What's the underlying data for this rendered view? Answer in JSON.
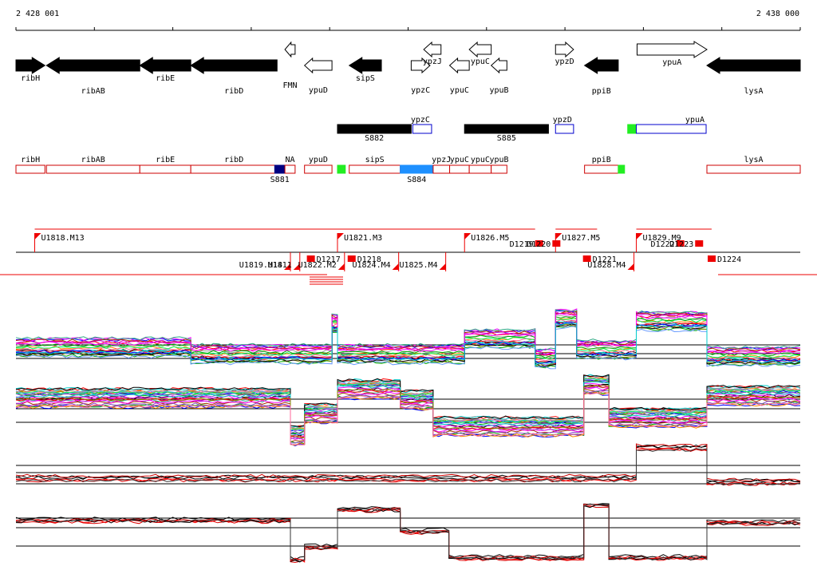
{
  "coords": {
    "start": "2 428 001",
    "end": "2 438 000"
  },
  "colors": {
    "gene_fill": "#000000",
    "feature_outline_red": "#cc0000",
    "feature_outline_blue": "#0000cc",
    "segment_red": "#ee0000",
    "green": "#22ee22",
    "navy": "#000080",
    "sky": "#1e90ff"
  },
  "genes": [
    {
      "name": "ribH",
      "strand": "+",
      "start": 2428001,
      "end": 2428370,
      "filled": true
    },
    {
      "name": "ribAB",
      "strand": "-",
      "start": 2428390,
      "end": 2429580,
      "filled": true
    },
    {
      "name": "ribE",
      "strand": "-",
      "start": 2429580,
      "end": 2430230,
      "filled": true
    },
    {
      "name": "ribD",
      "strand": "-",
      "start": 2430230,
      "end": 2431330,
      "filled": true
    },
    {
      "name": "FMN",
      "strand": "-",
      "start": 2431430,
      "end": 2431560,
      "filled": false
    },
    {
      "name": "ypuD",
      "strand": "-",
      "start": 2431680,
      "end": 2432030,
      "filled": false
    },
    {
      "name": "sipS",
      "strand": "-",
      "start": 2432250,
      "end": 2432660,
      "filled": true
    },
    {
      "name": "ypzC",
      "strand": "+",
      "start": 2433040,
      "end": 2433280,
      "filled": false
    },
    {
      "name": "ypzJ",
      "strand": "-",
      "start": 2433200,
      "end": 2433420,
      "filled": false
    },
    {
      "name": "ypuC",
      "strand": "-",
      "start": 2433530,
      "end": 2433780,
      "filled": false
    },
    {
      "name": "ypuC",
      "strand": "-",
      "start": 2433780,
      "end": 2434060,
      "filled": false
    },
    {
      "name": "ypuB",
      "strand": "-",
      "start": 2434060,
      "end": 2434260,
      "filled": false
    },
    {
      "name": "ypzD",
      "strand": "+",
      "start": 2434880,
      "end": 2435110,
      "filled": false
    },
    {
      "name": "ppiB",
      "strand": "-",
      "start": 2435250,
      "end": 2435680,
      "filled": true
    },
    {
      "name": "ypuA",
      "strand": "+",
      "start": 2435920,
      "end": 2436810,
      "filled": false
    },
    {
      "name": "lysA",
      "strand": "-",
      "start": 2436810,
      "end": 2438000,
      "filled": true
    }
  ],
  "blocks": [
    {
      "label": "S882",
      "kind": "black",
      "start": 2432100,
      "end": 2433040
    },
    {
      "label": "ypzC",
      "kind": "blue",
      "start": 2433060,
      "end": 2433300
    },
    {
      "label": "S885",
      "kind": "black",
      "start": 2433720,
      "end": 2434790
    },
    {
      "label": "ypzD",
      "kind": "blue",
      "start": 2434880,
      "end": 2435110
    },
    {
      "label": "",
      "kind": "green",
      "start": 2435800,
      "end": 2435910
    },
    {
      "label": "ypuA",
      "kind": "blue",
      "start": 2435910,
      "end": 2436800
    }
  ],
  "segments": [
    {
      "label": "ribH",
      "start": 2428001,
      "end": 2428370,
      "kind": "red"
    },
    {
      "label": "ribAB",
      "start": 2428390,
      "end": 2429580,
      "kind": "red"
    },
    {
      "label": "ribE",
      "start": 2429580,
      "end": 2430230,
      "kind": "red"
    },
    {
      "label": "ribD",
      "start": 2430230,
      "end": 2431330,
      "kind": "red"
    },
    {
      "label": "S881",
      "start": 2431300,
      "end": 2431430,
      "kind": "navy"
    },
    {
      "label": "NA",
      "start": 2431430,
      "end": 2431560,
      "kind": "red"
    },
    {
      "label": "ypuD",
      "start": 2431680,
      "end": 2432030,
      "kind": "red"
    },
    {
      "label": "",
      "start": 2432100,
      "end": 2432200,
      "kind": "green"
    },
    {
      "label": "sipS",
      "start": 2432250,
      "end": 2432900,
      "kind": "red"
    },
    {
      "label": "S884",
      "start": 2432900,
      "end": 2433320,
      "kind": "sky"
    },
    {
      "label": "ypzJ",
      "start": 2433320,
      "end": 2433530,
      "kind": "red"
    },
    {
      "label": "ypuC",
      "start": 2433530,
      "end": 2433780,
      "kind": "red"
    },
    {
      "label": "ypuC",
      "start": 2433780,
      "end": 2434060,
      "kind": "red"
    },
    {
      "label": "ypuB",
      "start": 2434060,
      "end": 2434260,
      "kind": "red"
    },
    {
      "label": "ppiB",
      "start": 2435250,
      "end": 2435680,
      "kind": "red"
    },
    {
      "label": "",
      "start": 2435680,
      "end": 2435760,
      "kind": "green"
    },
    {
      "label": "lysA",
      "start": 2436810,
      "end": 2438000,
      "kind": "red"
    }
  ],
  "transcripts_top": [
    {
      "label": "U1818.M13",
      "start": 2428240,
      "end": 2433900
    },
    {
      "label": "U1821.M3",
      "start": 2432100,
      "end": 2433040
    },
    {
      "label": "U1826.M5",
      "start": 2433720,
      "end": 2434620
    },
    {
      "label": "U1827.M5",
      "start": 2434880,
      "end": 2435410
    },
    {
      "label": "U1829.M9",
      "start": 2435910,
      "end": 2436870
    }
  ],
  "transcripts_bottom": [
    {
      "label": "U1819.M14",
      "start": 2428001,
      "end": 2431500
    },
    {
      "label": "U1811",
      "start": 2431500,
      "end": 2431620
    },
    {
      "label": "U1822.M2",
      "start": 2431620,
      "end": 2432190
    },
    {
      "label": "U1824.M4",
      "start": 2432250,
      "end": 2432880
    },
    {
      "label": "U1825.M4",
      "start": 2432880,
      "end": 2433480
    },
    {
      "label": "U1828.M4",
      "start": 2435230,
      "end": 2435880
    }
  ],
  "red_marks": [
    {
      "label": "D1217",
      "pos": 2431710,
      "row": "bottom"
    },
    {
      "label": "D1218",
      "pos": 2432230,
      "row": "bottom"
    },
    {
      "label": "D1219",
      "pos": 2434620,
      "row": "top"
    },
    {
      "label": "D1220",
      "pos": 2434840,
      "row": "top"
    },
    {
      "label": "D1221",
      "pos": 2435230,
      "row": "bottom"
    },
    {
      "label": "D1222",
      "pos": 2436420,
      "row": "top"
    },
    {
      "label": "D1223",
      "pos": 2436660,
      "row": "top"
    },
    {
      "label": "D1224",
      "pos": 2436820,
      "row": "bottom"
    }
  ],
  "tracks": [
    {
      "name": "track-1",
      "levels": [
        {
          "start": 2428001,
          "end": 2430230,
          "v": 0.35
        },
        {
          "start": 2430230,
          "end": 2432030,
          "v": 0.2
        },
        {
          "start": 2432030,
          "end": 2432100,
          "v": 0.9
        },
        {
          "start": 2432100,
          "end": 2433720,
          "v": 0.2
        },
        {
          "start": 2433720,
          "end": 2434620,
          "v": 0.55
        },
        {
          "start": 2434620,
          "end": 2434880,
          "v": 0.1
        },
        {
          "start": 2434880,
          "end": 2435150,
          "v": 1.0
        },
        {
          "start": 2435150,
          "end": 2435910,
          "v": 0.3
        },
        {
          "start": 2435910,
          "end": 2436810,
          "v": 0.95
        },
        {
          "start": 2436810,
          "end": 2438000,
          "v": 0.15
        }
      ]
    },
    {
      "name": "track-2",
      "levels": [
        {
          "start": 2428001,
          "end": 2431500,
          "v": 0.55
        },
        {
          "start": 2431500,
          "end": 2431680,
          "v": -0.3
        },
        {
          "start": 2431680,
          "end": 2432100,
          "v": 0.2
        },
        {
          "start": 2432100,
          "end": 2432900,
          "v": 0.75
        },
        {
          "start": 2432900,
          "end": 2433320,
          "v": 0.5
        },
        {
          "start": 2433320,
          "end": 2435240,
          "v": -0.1
        },
        {
          "start": 2435240,
          "end": 2435560,
          "v": 0.85
        },
        {
          "start": 2435560,
          "end": 2436810,
          "v": 0.1
        },
        {
          "start": 2436810,
          "end": 2438000,
          "v": 0.6
        }
      ]
    },
    {
      "name": "track-3",
      "levels": [
        {
          "start": 2428001,
          "end": 2435910,
          "v": 0.15
        },
        {
          "start": 2435910,
          "end": 2436810,
          "v": 1.0
        },
        {
          "start": 2436810,
          "end": 2438000,
          "v": 0.05
        }
      ]
    },
    {
      "name": "track-4",
      "levels": [
        {
          "start": 2428001,
          "end": 2431500,
          "v": 0.6
        },
        {
          "start": 2431500,
          "end": 2431680,
          "v": -0.3
        },
        {
          "start": 2431680,
          "end": 2432100,
          "v": 0.0
        },
        {
          "start": 2432100,
          "end": 2432900,
          "v": 0.85
        },
        {
          "start": 2432900,
          "end": 2433520,
          "v": 0.35
        },
        {
          "start": 2433520,
          "end": 2435240,
          "v": -0.25
        },
        {
          "start": 2435240,
          "end": 2435560,
          "v": 0.95
        },
        {
          "start": 2435560,
          "end": 2436810,
          "v": -0.25
        },
        {
          "start": 2436810,
          "end": 2438000,
          "v": 0.55
        }
      ]
    }
  ]
}
